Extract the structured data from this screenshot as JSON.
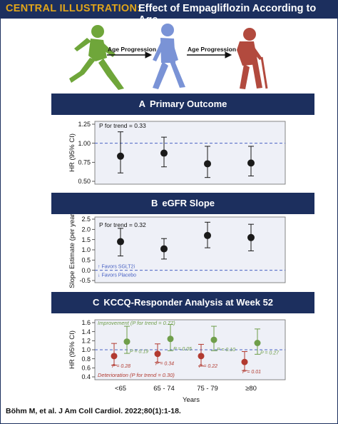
{
  "header": {
    "lead": "CENTRAL ILLUSTRATION:",
    "title": "Effect of Empagliflozin According to Age"
  },
  "illustration": {
    "arrow_label_1": "Age Progression",
    "arrow_label_2": "Age Progression",
    "figure_colors": [
      "#6fa63a",
      "#7a93d6",
      "#b24a3e"
    ]
  },
  "panels": {
    "a": {
      "letter": "A",
      "title": "Primary Outcome"
    },
    "b": {
      "letter": "B",
      "title": "eGFR Slope"
    },
    "c": {
      "letter": "C",
      "title": "KCCQ-Responder Analysis at Week 52"
    }
  },
  "chart_data": [
    {
      "type": "scatter",
      "panel": "A",
      "ylabel": "HR (95% CI)",
      "ylim": [
        0.5,
        1.25
      ],
      "yticks": [
        "0.50",
        "0.75",
        "1.00",
        "1.25"
      ],
      "reference_line": 1.0,
      "categories": [
        "<65",
        "65 - 74",
        "75 - 79",
        "≥80"
      ],
      "annotation": "P for trend = 0.33",
      "series": [
        {
          "values": [
            0.83,
            0.87,
            0.73,
            0.74
          ],
          "ci_low": [
            0.61,
            0.69,
            0.55,
            0.57
          ],
          "ci_high": [
            1.15,
            1.08,
            0.96,
            0.96
          ],
          "color": "#1a1a1a"
        }
      ]
    },
    {
      "type": "scatter",
      "panel": "B",
      "ylabel": "Slope Estimate (per year)",
      "ylim": [
        -0.5,
        2.5
      ],
      "yticks": [
        "-0.5",
        "0.0",
        "0.5",
        "1.0",
        "1.5",
        "2.0",
        "2.5"
      ],
      "reference_line": 0.0,
      "categories": [
        "<65",
        "65 - 74",
        "75 - 79",
        "≥80"
      ],
      "annotation": "P for trend = 0.32",
      "favors_up": "↑ Favors SGLT2i",
      "favors_down": "↓ Favors Placebo",
      "series": [
        {
          "values": [
            1.4,
            1.05,
            1.7,
            1.6
          ],
          "ci_low": [
            0.7,
            0.55,
            1.1,
            0.95
          ],
          "ci_high": [
            2.05,
            1.55,
            2.35,
            2.25
          ],
          "color": "#1a1a1a"
        }
      ]
    },
    {
      "type": "scatter",
      "panel": "C",
      "ylabel": "HR (95% CI)",
      "xlabel": "Years",
      "ylim": [
        0.4,
        1.6
      ],
      "yticks": [
        "0.4",
        "0.6",
        "0.8",
        "1.0",
        "1.2",
        "1.4",
        "1.6"
      ],
      "reference_line": 1.0,
      "categories": [
        "<65",
        "65 - 74",
        "75 - 79",
        "≥80"
      ],
      "improvement_label": "Improvement (P for trend = 0.77)",
      "deterioration_label": "Deterioration (P for trend = 0.30)",
      "series": [
        {
          "name": "Improvement",
          "values": [
            1.18,
            1.24,
            1.22,
            1.15
          ],
          "ci_low": [
            0.92,
            0.98,
            0.98,
            0.9
          ],
          "ci_high": [
            1.52,
            1.56,
            1.52,
            1.46
          ],
          "p_labels": [
            "P = 0.19",
            "P = 0.05",
            "P = 0.10",
            "P = 0.27"
          ],
          "color": "#6f9e4a"
        },
        {
          "name": "Deterioration",
          "values": [
            0.86,
            0.91,
            0.86,
            0.73
          ],
          "ci_low": [
            0.66,
            0.72,
            0.64,
            0.54
          ],
          "ci_high": [
            1.14,
            1.13,
            1.12,
            0.96
          ],
          "p_labels": [
            "P = 0.28",
            "P = 0.34",
            "P = 0.22",
            "P = 0.01"
          ],
          "color": "#b23a30"
        }
      ]
    }
  ],
  "citation": "Böhm M, et al. J Am Coll Cardiol. 2022;80(1):1-18."
}
